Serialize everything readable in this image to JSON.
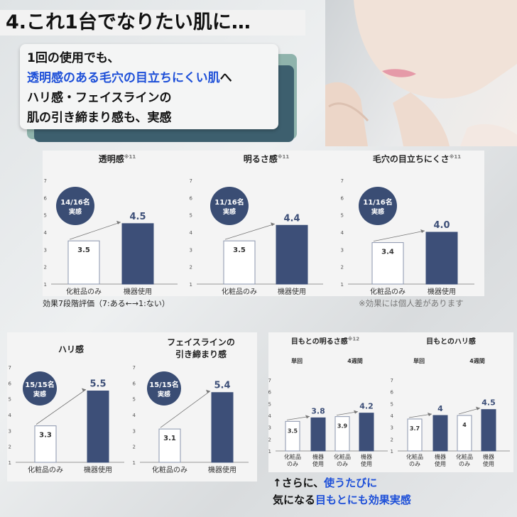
{
  "hero": {
    "title": "4.これ1台でなりたい肌に…"
  },
  "message": {
    "line1": "1回の使用でも、",
    "line2": "透明感のある毛穴の目立ちにくい肌",
    "line2_suffix": "へ",
    "line3": "ハリ感・フェイスラインの",
    "line4": "肌の引き締まり感も、実感"
  },
  "notes": {
    "scale": "効果7段階評価（7:ある←→1:ない）",
    "disclaimer": "※効果には個人差があります"
  },
  "bottom_caption": {
    "line1_prefix": "↑さらに、",
    "line1_highlight": "使うたびに",
    "line2_prefix": "気になる",
    "line2_highlight": "目もとにも効果実感"
  },
  "colors": {
    "bar_dark": "#3d4f78",
    "bar_light": "#ffffff",
    "badge": "#3a4d74",
    "text_blue": "#1d4fd8"
  },
  "chart_data": [
    {
      "type": "bar",
      "title": "透明感",
      "title_note": "※11",
      "yticks": [
        "1",
        "2",
        "3",
        "4",
        "5",
        "6",
        "7"
      ],
      "ylim": [
        1,
        7
      ],
      "categories": [
        "化粧品のみ",
        "機器使用"
      ],
      "values": [
        3.5,
        4.5
      ],
      "value_labels": [
        "3.5",
        "4.5"
      ],
      "badge_line1": "14/16名",
      "badge_line2": "実感"
    },
    {
      "type": "bar",
      "title": "明るさ感",
      "title_note": "※11",
      "yticks": [
        "1",
        "2",
        "3",
        "4",
        "5",
        "6",
        "7"
      ],
      "ylim": [
        1,
        7
      ],
      "categories": [
        "化粧品のみ",
        "機器使用"
      ],
      "values": [
        3.5,
        4.4
      ],
      "value_labels": [
        "3.5",
        "4.4"
      ],
      "badge_line1": "11/16名",
      "badge_line2": "実感"
    },
    {
      "type": "bar",
      "title": "毛穴の目立ちにくさ",
      "title_note": "※11",
      "yticks": [
        "1",
        "2",
        "3",
        "4",
        "5",
        "6",
        "7"
      ],
      "ylim": [
        1,
        7
      ],
      "categories": [
        "化粧品のみ",
        "機器使用"
      ],
      "values": [
        3.4,
        4.0
      ],
      "value_labels": [
        "3.4",
        "4.0"
      ],
      "badge_line1": "11/16名",
      "badge_line2": "実感"
    },
    {
      "type": "bar",
      "title": "ハリ感",
      "title_note": "",
      "yticks": [
        "1",
        "2",
        "3",
        "4",
        "5",
        "6",
        "7"
      ],
      "ylim": [
        1,
        7
      ],
      "categories": [
        "化粧品のみ",
        "機器使用"
      ],
      "values": [
        3.3,
        5.5
      ],
      "value_labels": [
        "3.3",
        "5.5"
      ],
      "badge_line1": "15/15名",
      "badge_line2": "実感"
    },
    {
      "type": "bar",
      "title": "フェイスラインの",
      "title2": "引き締まり感",
      "title_note": "",
      "yticks": [
        "1",
        "2",
        "3",
        "4",
        "5",
        "6",
        "7"
      ],
      "ylim": [
        1,
        7
      ],
      "categories": [
        "化粧品のみ",
        "機器使用"
      ],
      "values": [
        3.1,
        5.4
      ],
      "value_labels": [
        "3.1",
        "5.4"
      ],
      "badge_line1": "15/15名",
      "badge_line2": "実感"
    },
    {
      "type": "bar",
      "title": "目もとの明るさ感",
      "title_note": "※12",
      "yticks": [
        "1",
        "2",
        "3",
        "4",
        "5",
        "6",
        "7"
      ],
      "ylim": [
        1,
        7
      ],
      "groups": [
        "単回",
        "4週間"
      ],
      "categories": [
        "化粧品のみ",
        "機器使用",
        "化粧品のみ",
        "機器使用"
      ],
      "category_lines": [
        [
          "化粧品",
          "のみ"
        ],
        [
          "機器",
          "使用"
        ],
        [
          "化粧品",
          "のみ"
        ],
        [
          "機器",
          "使用"
        ]
      ],
      "values": [
        3.5,
        3.8,
        3.9,
        4.2
      ],
      "value_labels": [
        "3.5",
        "3.8",
        "3.9",
        "4.2"
      ]
    },
    {
      "type": "bar",
      "title": "目もとのハリ感",
      "title_note": "",
      "yticks": [
        "1",
        "2",
        "3",
        "4",
        "5",
        "6",
        "7"
      ],
      "ylim": [
        1,
        7
      ],
      "groups": [
        "単回",
        "4週間"
      ],
      "categories": [
        "化粧品のみ",
        "機器使用",
        "化粧品のみ",
        "機器使用"
      ],
      "category_lines": [
        [
          "化粧品",
          "のみ"
        ],
        [
          "機器",
          "使用"
        ],
        [
          "化粧品",
          "のみ"
        ],
        [
          "機器",
          "使用"
        ]
      ],
      "values": [
        3.7,
        4,
        4,
        4.5
      ],
      "value_labels": [
        "3.7",
        "4",
        "4",
        "4.5"
      ]
    }
  ]
}
